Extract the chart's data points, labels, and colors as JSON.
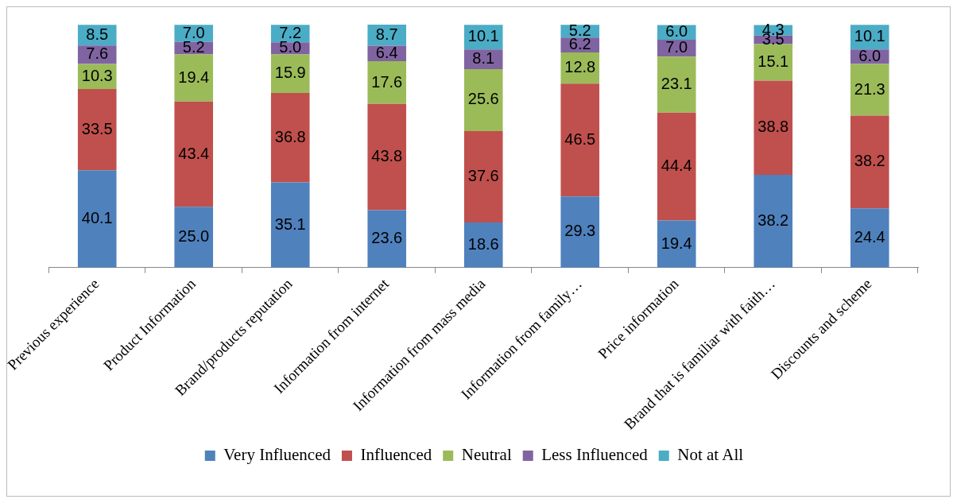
{
  "chart_data": {
    "type": "bar",
    "stacked": true,
    "legend": "bottom",
    "categories": [
      "Previous experience",
      "Product Information",
      "Brand/products reputation",
      "Information from internet",
      "Information from mass media",
      "Information from family…",
      "Price information",
      "Brand that is familiar with faith…",
      "Discounts and scheme"
    ],
    "series": [
      {
        "name": "Very Influenced",
        "color": "#4f81bd",
        "values": [
          40.1,
          25.0,
          35.1,
          23.6,
          18.6,
          29.3,
          19.4,
          38.2,
          24.4
        ],
        "value_labels": [
          "40.1",
          "25.0",
          "35.1",
          "23.6",
          "18.6",
          "29.3",
          "19.4",
          "38.2",
          "24.4"
        ]
      },
      {
        "name": "Influenced",
        "color": "#c0504d",
        "values": [
          33.5,
          43.4,
          36.8,
          43.8,
          37.6,
          46.5,
          44.4,
          38.8,
          38.2
        ],
        "value_labels": [
          "33.5",
          "43.4",
          "36.8",
          "43.8",
          "37.6",
          "46.5",
          "44.4",
          "38.8",
          "38.2"
        ]
      },
      {
        "name": "Neutral",
        "color": "#9bbb59",
        "values": [
          10.3,
          19.4,
          15.9,
          17.6,
          25.6,
          12.8,
          23.1,
          15.1,
          21.3
        ],
        "value_labels": [
          "10.3",
          "19.4",
          "15.9",
          "17.6",
          "25.6",
          "12.8",
          "23.1",
          "15.1",
          "21.3"
        ]
      },
      {
        "name": "Less Influenced",
        "color": "#8064a2",
        "values": [
          7.6,
          5.2,
          5.0,
          6.4,
          8.1,
          6.2,
          7.0,
          3.5,
          6.0
        ],
        "value_labels": [
          "7.6",
          "5.2",
          "5.0",
          "6.4",
          "8.1",
          "6.2",
          "7.0",
          "3.5",
          "6.0"
        ]
      },
      {
        "name": "Not at All",
        "color": "#4bacc6",
        "values": [
          8.5,
          7.0,
          7.2,
          8.7,
          10.1,
          5.2,
          6.0,
          4.3,
          10.1
        ],
        "value_labels": [
          "8.5",
          "7.0",
          "7.2",
          "8.7",
          "10.1",
          "5.2",
          "6.0",
          "4.3",
          "10.1"
        ]
      }
    ]
  }
}
